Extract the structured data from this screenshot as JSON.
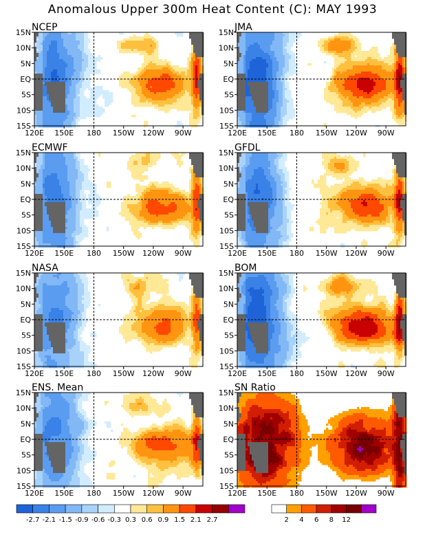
{
  "title": "Anomalous Upper 300m Heat Content (C): MAY 1993",
  "chart_data": [
    {
      "type": "heatmap",
      "title": "NCEP",
      "field": "anomaly",
      "regime": "n"
    },
    {
      "type": "heatmap",
      "title": "JMA",
      "field": "anomaly",
      "regime": "j"
    },
    {
      "type": "heatmap",
      "title": "ECMWF",
      "field": "anomaly",
      "regime": "e"
    },
    {
      "type": "heatmap",
      "title": "GFDL",
      "field": "anomaly",
      "regime": "g"
    },
    {
      "type": "heatmap",
      "title": "NASA",
      "field": "anomaly",
      "regime": "a"
    },
    {
      "type": "heatmap",
      "title": "BOM",
      "field": "anomaly",
      "regime": "b"
    },
    {
      "type": "heatmap",
      "title": "ENS. Mean",
      "field": "anomaly",
      "regime": "m"
    },
    {
      "type": "heatmap",
      "title": "SN Ratio",
      "field": "snr",
      "regime": "s"
    }
  ],
  "axes": {
    "x_ticks": [
      "120E",
      "150E",
      "180",
      "150W",
      "120W",
      "90W"
    ],
    "x_values": [
      120,
      150,
      180,
      210,
      240,
      270
    ],
    "y_ticks": [
      "15N",
      "10N",
      "5N",
      "EQ",
      "5S",
      "10S",
      "15S"
    ],
    "y_values": [
      15,
      10,
      5,
      0,
      -5,
      -10,
      -15
    ],
    "xlim": [
      120,
      290
    ],
    "ylim": [
      -15,
      15
    ],
    "dashed_lines": {
      "lon": 180,
      "lat": 0
    }
  },
  "colorbars": {
    "anomaly": {
      "labels": [
        "-2.7",
        "-2.1",
        "-1.5",
        "-0.9",
        "-0.6",
        "-0.3",
        "0.3",
        "0.6",
        "0.9",
        "1.5",
        "2.1",
        "2.7"
      ],
      "colors": [
        "#1e64d8",
        "#3a82e6",
        "#5a9cf0",
        "#82b8f5",
        "#a8d2fa",
        "#d2ecff",
        "#ffffff",
        "#ffe896",
        "#ffc040",
        "#ff9410",
        "#ff4800",
        "#c80000",
        "#960000",
        "#a000c8"
      ]
    },
    "snr": {
      "labels": [
        "2",
        "4",
        "6",
        "8",
        "12"
      ],
      "colors": [
        "#ffffff",
        "#ffa000",
        "#ff5a00",
        "#d21e00",
        "#a00000",
        "#780000",
        "#a000c8"
      ]
    }
  }
}
